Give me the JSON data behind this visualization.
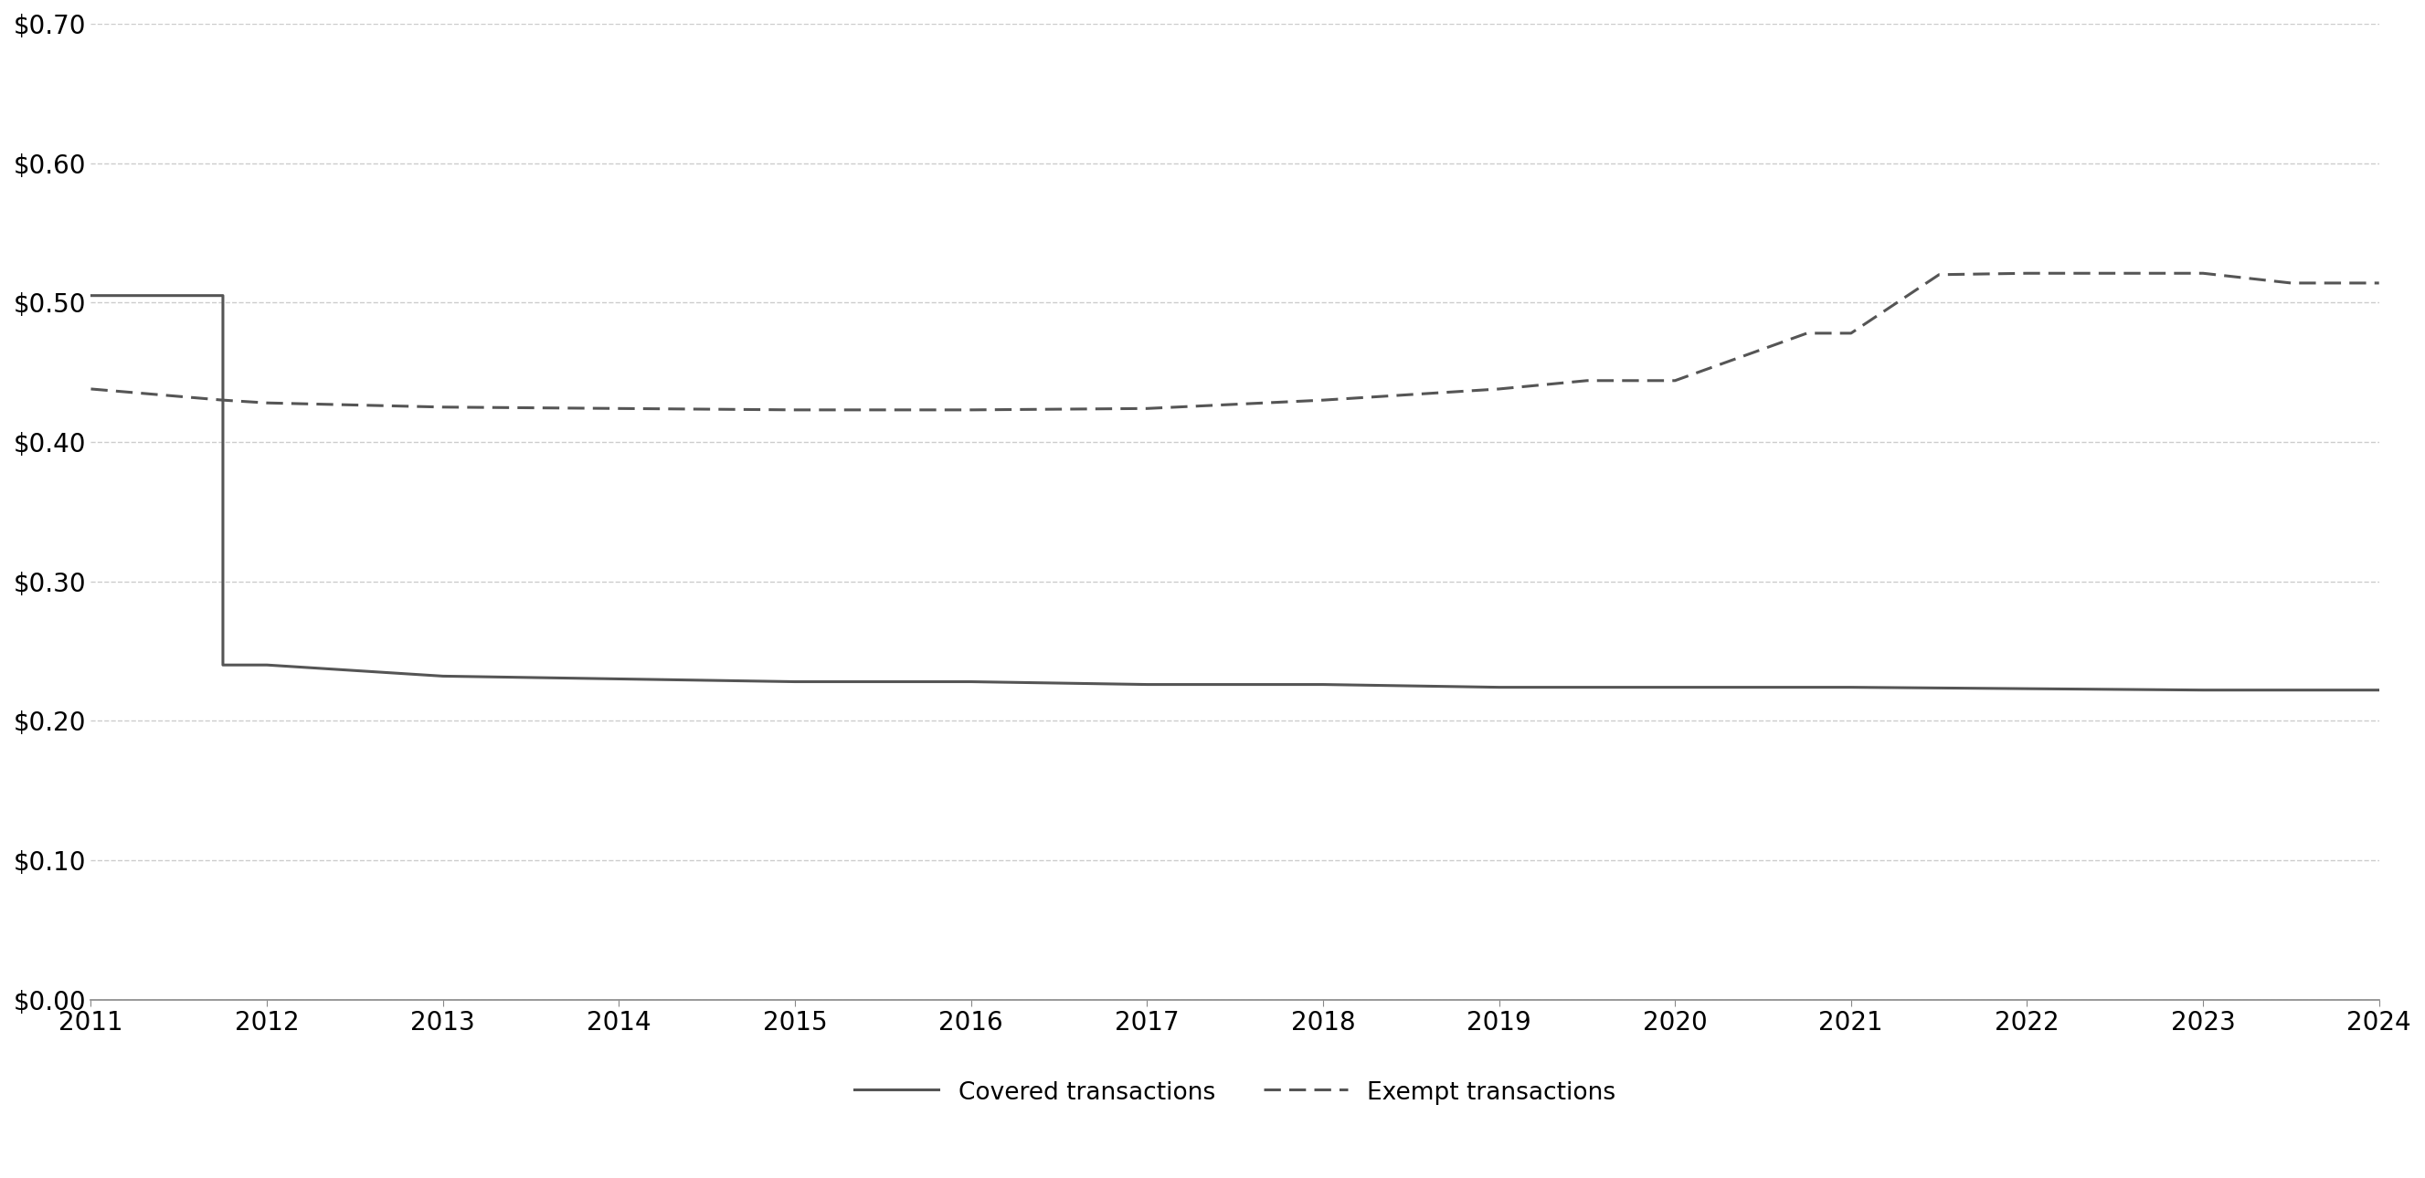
{
  "covered_x": [
    2011,
    2011.75,
    2011.75,
    2012,
    2013,
    2014,
    2015,
    2016,
    2017,
    2018,
    2019,
    2020,
    2021,
    2022,
    2023,
    2024
  ],
  "covered_y": [
    0.505,
    0.505,
    0.24,
    0.24,
    0.232,
    0.23,
    0.228,
    0.228,
    0.226,
    0.226,
    0.224,
    0.224,
    0.224,
    0.223,
    0.222,
    0.222
  ],
  "exempt_x": [
    2011,
    2011.75,
    2012,
    2013,
    2014,
    2015,
    2016,
    2017,
    2018,
    2019,
    2019.5,
    2020,
    2020.75,
    2021,
    2021.5,
    2022,
    2023,
    2023.5,
    2024
  ],
  "exempt_y": [
    0.438,
    0.43,
    0.428,
    0.425,
    0.424,
    0.423,
    0.423,
    0.424,
    0.43,
    0.438,
    0.444,
    0.444,
    0.478,
    0.478,
    0.52,
    0.521,
    0.521,
    0.514,
    0.514
  ],
  "covered_color": "#555555",
  "exempt_color": "#555555",
  "background_color": "#ffffff",
  "grid_color": "#cccccc",
  "legend_covered": "Covered transactions",
  "legend_exempt": "Exempt transactions",
  "xlim": [
    2011,
    2024
  ],
  "ylim": [
    0.0,
    0.7
  ],
  "yticks": [
    0.0,
    0.1,
    0.2,
    0.3,
    0.4,
    0.5,
    0.6,
    0.7
  ],
  "xticks": [
    2011,
    2012,
    2013,
    2014,
    2015,
    2016,
    2017,
    2018,
    2019,
    2020,
    2021,
    2022,
    2023,
    2024
  ],
  "line_width": 2.2,
  "font_size": 20,
  "legend_font_size": 19
}
